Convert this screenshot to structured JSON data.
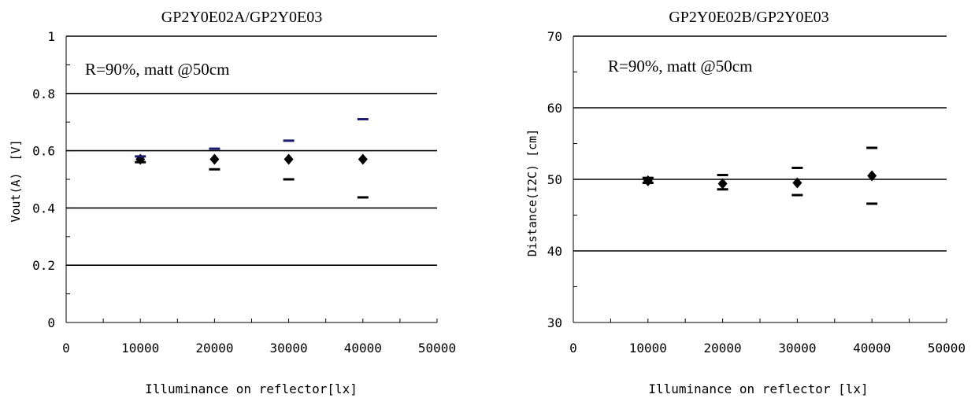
{
  "chart_data": [
    {
      "type": "scatter",
      "title": "GP2Y0E02A/GP2Y0E03",
      "annotation": "R=90%, matt @50cm",
      "xlabel": "Illuminance on reflector[lx]",
      "ylabel": "Vout(A)　[V]",
      "xlim": [
        0,
        50000
      ],
      "ylim": [
        0,
        1
      ],
      "x_ticks": [
        "0",
        "10000",
        "20000",
        "30000",
        "40000",
        "50000"
      ],
      "y_ticks": [
        "0",
        "0.2",
        "0.4",
        "0.6",
        "0.8",
        "1"
      ],
      "x_tick_values": [
        0,
        10000,
        20000,
        30000,
        40000,
        50000
      ],
      "y_tick_values": [
        0,
        0.2,
        0.4,
        0.6,
        0.8,
        1
      ],
      "gridlines_y": [
        0.2,
        0.4,
        0.6,
        0.8,
        1
      ],
      "x_minor_step": 5000,
      "y_minor_step": 0.1,
      "series": [
        {
          "marker": "diamond",
          "color": "#000000",
          "points": [
            {
              "x": 10000,
              "y": 0.57
            },
            {
              "x": 20000,
              "y": 0.57
            },
            {
              "x": 30000,
              "y": 0.57
            },
            {
              "x": 40000,
              "y": 0.57
            }
          ]
        },
        {
          "marker": "dash",
          "color": "#1a1a6e",
          "points": [
            {
              "x": 10000,
              "y": 0.58
            },
            {
              "x": 20000,
              "y": 0.607
            },
            {
              "x": 30000,
              "y": 0.635
            },
            {
              "x": 40000,
              "y": 0.71
            }
          ]
        },
        {
          "marker": "dash",
          "color": "#000000",
          "points": [
            {
              "x": 10000,
              "y": 0.56
            },
            {
              "x": 20000,
              "y": 0.535
            },
            {
              "x": 30000,
              "y": 0.5
            },
            {
              "x": 40000,
              "y": 0.437
            }
          ]
        }
      ]
    },
    {
      "type": "scatter",
      "title": "GP2Y0E02B/GP2Y0E03",
      "annotation": "R=90%, matt @50cm",
      "xlabel": "Illuminance on reflector [lx]",
      "ylabel": "Distance(I2C) [cm]",
      "xlim": [
        0,
        50000
      ],
      "ylim": [
        30,
        70
      ],
      "x_ticks": [
        "0",
        "10000",
        "20000",
        "30000",
        "40000",
        "50000"
      ],
      "y_ticks": [
        "30",
        "40",
        "50",
        "60",
        "70"
      ],
      "x_tick_values": [
        0,
        10000,
        20000,
        30000,
        40000,
        50000
      ],
      "y_tick_values": [
        30,
        40,
        50,
        60,
        70
      ],
      "gridlines_y": [
        40,
        50,
        60,
        70
      ],
      "x_minor_step": 5000,
      "y_minor_step": 5,
      "series": [
        {
          "marker": "diamond",
          "color": "#000000",
          "points": [
            {
              "x": 10000,
              "y": 49.8
            },
            {
              "x": 20000,
              "y": 49.4
            },
            {
              "x": 30000,
              "y": 49.5
            },
            {
              "x": 40000,
              "y": 50.5
            }
          ]
        },
        {
          "marker": "dash",
          "color": "#000000",
          "points": [
            {
              "x": 10000,
              "y": 50.2
            },
            {
              "x": 20000,
              "y": 50.6
            },
            {
              "x": 30000,
              "y": 51.6
            },
            {
              "x": 40000,
              "y": 54.4
            }
          ]
        },
        {
          "marker": "dash",
          "color": "#000000",
          "points": [
            {
              "x": 10000,
              "y": 49.5
            },
            {
              "x": 20000,
              "y": 48.6
            },
            {
              "x": 30000,
              "y": 47.8
            },
            {
              "x": 40000,
              "y": 46.6
            }
          ]
        }
      ]
    }
  ]
}
